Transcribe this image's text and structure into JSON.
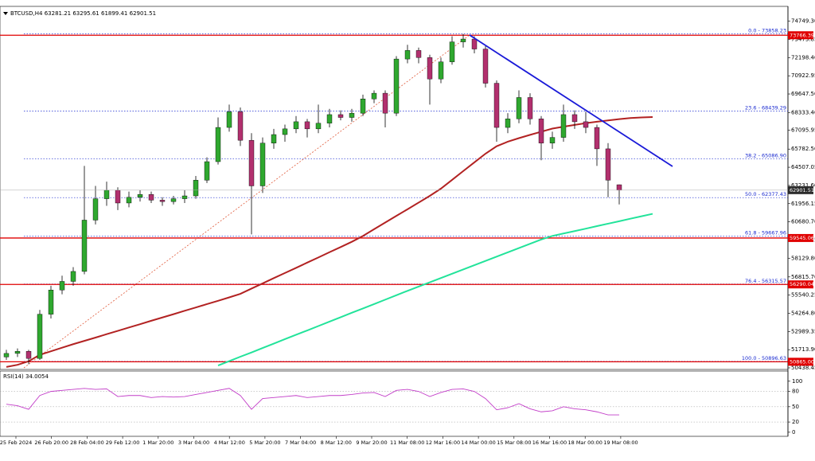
{
  "chart_data": {
    "type": "candlestick",
    "symbol": "BTCUSD,H4",
    "ohlc": [
      63281.21,
      63295.61,
      61899.41,
      62901.51
    ],
    "colors": {
      "up": "#2fa82f",
      "down": "#b2306e",
      "wick": "#000000",
      "level": "#e00000",
      "fib": "#1a2ad0",
      "trend": "#1a1ad8",
      "fibline": "#e05a3a"
    },
    "ylim": [
      50438.45,
      75680
    ],
    "yticks": [
      {
        "value": 74749.3,
        "label": "74749.30"
      },
      {
        "value": 73473.85,
        "label": "73473.85"
      },
      {
        "value": 72198.4,
        "label": "72198.40"
      },
      {
        "value": 70922.95,
        "label": "70922.95"
      },
      {
        "value": 69647.5,
        "label": "69647.50"
      },
      {
        "value": 68333.4,
        "label": "68333.40"
      },
      {
        "value": 67095.95,
        "label": "67095.95"
      },
      {
        "value": 65782.5,
        "label": "65782.50"
      },
      {
        "value": 64507.05,
        "label": "64507.05"
      },
      {
        "value": 63231.6,
        "label": "63231.60"
      },
      {
        "value": 61956.15,
        "label": "61956.15"
      },
      {
        "value": 60680.7,
        "label": "60680.70"
      },
      {
        "value": 59405.25,
        "label": "59405.25"
      },
      {
        "value": 58129.8,
        "label": "58129.80"
      },
      {
        "value": 56815.7,
        "label": "56815.70"
      },
      {
        "value": 55540.25,
        "label": "55540.25"
      },
      {
        "value": 54264.8,
        "label": "54264.80"
      },
      {
        "value": 52989.35,
        "label": "52989.35"
      },
      {
        "value": 51713.9,
        "label": "51713.90"
      },
      {
        "value": 50438.45,
        "label": "50438.45"
      }
    ],
    "candles": [
      [
        51200,
        51700,
        51000,
        51450
      ],
      [
        51450,
        51800,
        51200,
        51600
      ],
      [
        51600,
        51700,
        50700,
        51100
      ],
      [
        51100,
        54500,
        51000,
        54200
      ],
      [
        54200,
        56200,
        53900,
        55900
      ],
      [
        55900,
        56900,
        55600,
        56500
      ],
      [
        56500,
        57500,
        56200,
        57200
      ],
      [
        57200,
        64600,
        57000,
        60800
      ],
      [
        60800,
        63200,
        60500,
        62300
      ],
      [
        62300,
        63500,
        61800,
        62900
      ],
      [
        62900,
        63100,
        61500,
        62000
      ],
      [
        62000,
        62800,
        61700,
        62400
      ],
      [
        62400,
        62900,
        62100,
        62600
      ],
      [
        62600,
        62800,
        62000,
        62200
      ],
      [
        62200,
        62400,
        61800,
        62100
      ],
      [
        62100,
        62500,
        61900,
        62300
      ],
      [
        62300,
        62900,
        62000,
        62500
      ],
      [
        62500,
        63900,
        62300,
        63600
      ],
      [
        63600,
        65200,
        63400,
        64900
      ],
      [
        64900,
        68000,
        64700,
        67300
      ],
      [
        67300,
        68900,
        67000,
        68400
      ],
      [
        68400,
        68700,
        66000,
        66400
      ],
      [
        66400,
        66900,
        59800,
        63200
      ],
      [
        63200,
        66600,
        62700,
        66200
      ],
      [
        66200,
        67200,
        65800,
        66800
      ],
      [
        66800,
        67500,
        66300,
        67200
      ],
      [
        67200,
        68100,
        66900,
        67700
      ],
      [
        67700,
        67900,
        66600,
        67200
      ],
      [
        67200,
        68900,
        66900,
        67600
      ],
      [
        67600,
        68600,
        67300,
        68200
      ],
      [
        68200,
        68500,
        67800,
        68000
      ],
      [
        68000,
        68600,
        67700,
        68300
      ],
      [
        68300,
        69600,
        68100,
        69300
      ],
      [
        69300,
        69900,
        69000,
        69700
      ],
      [
        69700,
        69900,
        67300,
        68300
      ],
      [
        68300,
        72300,
        68100,
        72100
      ],
      [
        72100,
        73100,
        71800,
        72700
      ],
      [
        72700,
        72900,
        71800,
        72200
      ],
      [
        72200,
        72400,
        68900,
        70700
      ],
      [
        70700,
        72200,
        70400,
        71900
      ],
      [
        71900,
        73700,
        71700,
        73300
      ],
      [
        73300,
        73858.23,
        72900,
        73500
      ],
      [
        73500,
        73700,
        72500,
        72800
      ],
      [
        72800,
        73000,
        70100,
        70400
      ],
      [
        70400,
        70600,
        66300,
        67300
      ],
      [
        67300,
        68300,
        66900,
        67900
      ],
      [
        67900,
        69900,
        67600,
        69400
      ],
      [
        69400,
        69700,
        67500,
        67900
      ],
      [
        67900,
        68100,
        65000,
        66200
      ],
      [
        66200,
        67000,
        65800,
        66600
      ],
      [
        66600,
        68900,
        66300,
        68200
      ],
      [
        68200,
        68500,
        67200,
        67700
      ],
      [
        67700,
        68400,
        66900,
        67300
      ],
      [
        67300,
        67500,
        64600,
        65800
      ],
      [
        65800,
        66200,
        62400,
        63600
      ],
      [
        63281.21,
        63295.61,
        61899.41,
        62901.51
      ]
    ],
    "moving_averages": [
      {
        "color": "#b22222",
        "values": [
          50500,
          50650,
          50900,
          51350,
          51600,
          51850,
          52100,
          52330,
          52560,
          52800,
          53030,
          53270,
          53500,
          53740,
          53970,
          54200,
          54440,
          54670,
          54910,
          55140,
          55380,
          55630,
          56000,
          56360,
          56730,
          57090,
          57450,
          57820,
          58180,
          58550,
          58910,
          59280,
          59690,
          60160,
          60630,
          61100,
          61560,
          62030,
          62500,
          63010,
          63620,
          64240,
          64850,
          65460,
          65980,
          66300,
          66550,
          66780,
          67000,
          67220,
          67350,
          67480,
          67600,
          67700,
          67790,
          67880,
          67960,
          68000,
          68030
        ]
      },
      {
        "color": "#22e39a",
        "values": [
          null,
          null,
          null,
          null,
          null,
          null,
          null,
          null,
          null,
          null,
          null,
          null,
          null,
          null,
          null,
          null,
          null,
          null,
          null,
          50600,
          50910,
          51220,
          51520,
          51830,
          52140,
          52450,
          52760,
          53060,
          53370,
          53680,
          53990,
          54300,
          54600,
          54910,
          55220,
          55530,
          55840,
          56140,
          56440,
          56740,
          57040,
          57340,
          57640,
          57940,
          58240,
          58540,
          58840,
          59140,
          59440,
          59690,
          59860,
          60030,
          60200,
          60380,
          60550,
          60720,
          60900,
          61070,
          61240
        ]
      }
    ],
    "fib_levels": [
      {
        "label": "0.0 - 73858.23",
        "value": 73858.23
      },
      {
        "label": "23.6 - 68439.29",
        "value": 68439.29
      },
      {
        "label": "38.2 - 65086.90",
        "value": 65086.9
      },
      {
        "label": "50.0 - 62377.43",
        "value": 62377.43
      },
      {
        "label": "61.8 - 59667.96",
        "value": 59667.96
      },
      {
        "label": "76.4 - 56315.57",
        "value": 56315.57
      },
      {
        "label": "100.0 - 50896.63",
        "value": 50896.63
      }
    ],
    "red_levels": [
      {
        "value": 73766.39,
        "label": "73766.39"
      },
      {
        "value": 59545.06,
        "label": "59545.06"
      },
      {
        "value": 56290.04,
        "label": "56290.04"
      },
      {
        "value": 50865,
        "label": "50865.00"
      }
    ],
    "last_price": 62901.51,
    "rsi": {
      "label": "RSI(14)",
      "value": 34.0054,
      "color": "#c23cc8",
      "ylim": [
        -8,
        120
      ],
      "yticks": [
        100,
        80,
        50,
        20,
        0
      ],
      "values": [
        55,
        52,
        45,
        72,
        80,
        82,
        84,
        86,
        84,
        85,
        70,
        72,
        72,
        68,
        70,
        69,
        70,
        74,
        78,
        82,
        86,
        72,
        45,
        66,
        68,
        70,
        72,
        68,
        70,
        72,
        72,
        74,
        77,
        78,
        70,
        82,
        84,
        80,
        70,
        78,
        84,
        85,
        80,
        66,
        44,
        48,
        56,
        46,
        40,
        42,
        50,
        46,
        44,
        40,
        34,
        34.0054
      ]
    },
    "xticks": [
      "25 Feb 2024",
      "26 Feb 20:00",
      "28 Feb 04:00",
      "29 Feb 12:00",
      "1 Mar 20:00",
      "3 Mar 04:00",
      "4 Mar 12:00",
      "5 Mar 20:00",
      "7 Mar 04:00",
      "8 Mar 12:00",
      "9 Mar 20:00",
      "11 Mar 08:00",
      "12 Mar 16:00",
      "14 Mar 00:00",
      "15 Mar 08:00",
      "16 Mar 16:00",
      "18 Mar 00:00",
      "19 Mar 08:00"
    ]
  }
}
